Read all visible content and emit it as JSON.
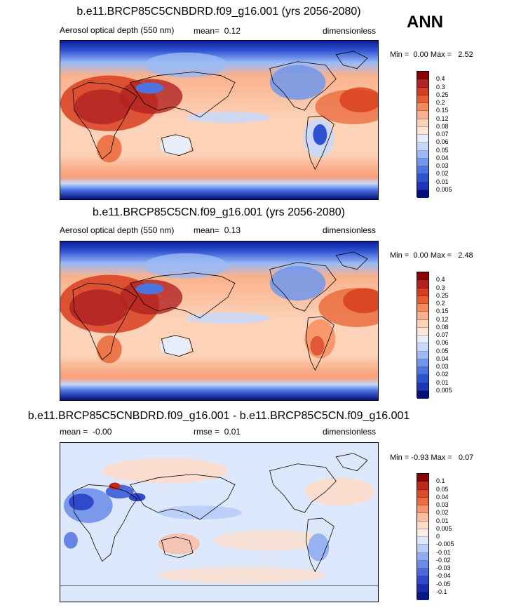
{
  "season": "ANN",
  "colors": {
    "aod_levels": [
      "#8b0000",
      "#b22222",
      "#d73d1e",
      "#e8602f",
      "#f58a5a",
      "#f9b18c",
      "#fcd3b9",
      "#fde8d8",
      "#e6eefc",
      "#c7d8fb",
      "#9bbaf5",
      "#6f98ec",
      "#4b74e0",
      "#2f52d2",
      "#1d36b7",
      "#0d1e99",
      "#050f7a"
    ],
    "diff_levels": [
      "#8b0000",
      "#c0281e",
      "#dc4a28",
      "#ec6c3f",
      "#f59671",
      "#fbbca0",
      "#fddcc9",
      "#dde8fc",
      "#b8cdfa",
      "#8eacf2",
      "#6a8be8",
      "#4a69dc",
      "#2f48cc",
      "#1a2cad",
      "#0a178a"
    ]
  },
  "panels": [
    {
      "title": "b.e11.BRCP85C5CNBDRD.f09_g16.001 (yrs 2056-2080)",
      "left_label": "Aerosol optical depth (550 nm)",
      "stat_label": "mean=",
      "stat_value": "0.12",
      "units": "dimensionless",
      "min_label": "Min =",
      "min_value": "0.00",
      "max_label": "Max =",
      "max_value": "2.52",
      "levels": [
        "0.4",
        "0.3",
        "0.25",
        "0.2",
        "0.15",
        "0.12",
        "0.08",
        "0.07",
        "0.06",
        "0.05",
        "0.04",
        "0.03",
        "0.02",
        "0.01",
        "0.005"
      ]
    },
    {
      "title": "b.e11.BRCP85C5CN.f09_g16.001 (yrs 2056-2080)",
      "left_label": "Aerosol optical depth (550 nm)",
      "stat_label": "mean=",
      "stat_value": "0.13",
      "units": "dimensionless",
      "min_label": "Min =",
      "min_value": "0.00",
      "max_label": "Max =",
      "max_value": "2.48",
      "levels": [
        "0.4",
        "0.3",
        "0.25",
        "0.2",
        "0.15",
        "0.12",
        "0.08",
        "0.07",
        "0.06",
        "0.05",
        "0.04",
        "0.03",
        "0.02",
        "0.01",
        "0.005"
      ]
    },
    {
      "title": "b.e11.BRCP85C5CNBDRD.f09_g16.001 - b.e11.BRCP85C5CN.f09_g16.001",
      "left_label": "mean =",
      "left_value": "-0.00",
      "stat_label": "rmse =",
      "stat_value": "0.01",
      "units": "dimensionless",
      "min_label": "Min =",
      "min_value": "-0.93",
      "max_label": "Max =",
      "max_value": "0.07",
      "levels": [
        "0.1",
        "0.05",
        "0.04",
        "0.03",
        "0.02",
        "0.01",
        "0.005",
        "0",
        "-0.005",
        "-0.01",
        "-0.02",
        "-0.03",
        "-0.04",
        "-0.05",
        "-0.1"
      ]
    }
  ]
}
